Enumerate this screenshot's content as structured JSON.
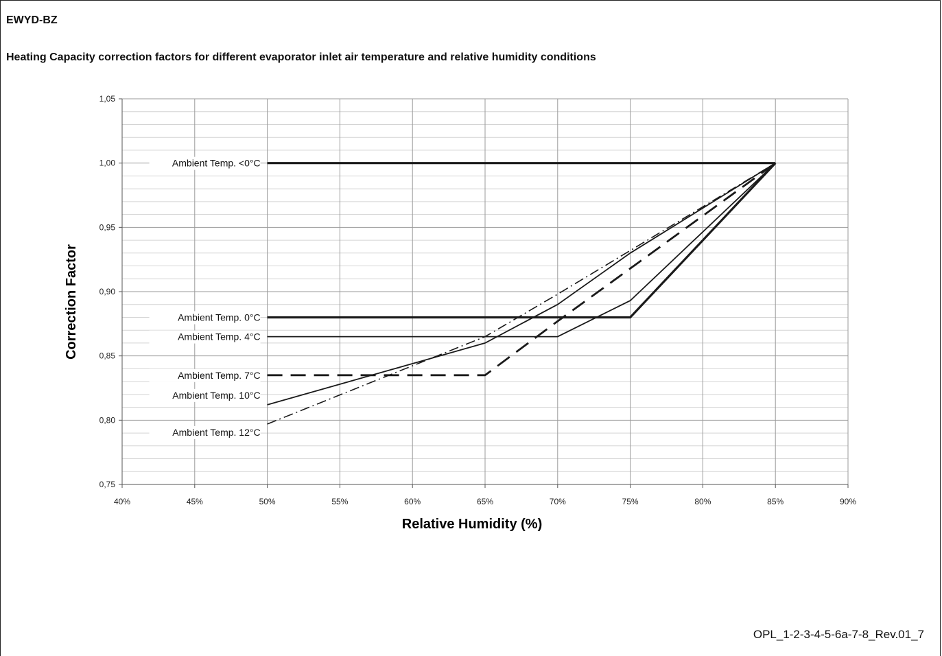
{
  "header": {
    "model": "EWYD-BZ",
    "title": "Heating Capacity correction factors for different evaporator inlet air temperature and relative humidity conditions"
  },
  "footer": {
    "reference": "OPL_1-2-3-4-5-6a-7-8_Rev.01_7"
  },
  "chart_data": {
    "type": "line",
    "title": "Heating Capacity correction factors for different evaporator inlet air temperature and relative humidity conditions",
    "xlabel": "Relative Humidity (%)",
    "ylabel": "Correction Factor",
    "xlim": [
      40,
      90
    ],
    "ylim": [
      0.75,
      1.05
    ],
    "x_ticks": [
      40,
      45,
      50,
      55,
      60,
      65,
      70,
      75,
      80,
      85,
      90
    ],
    "x_tick_labels": [
      "40%",
      "45%",
      "50%",
      "55%",
      "60%",
      "65%",
      "70%",
      "75%",
      "80%",
      "85%",
      "90%"
    ],
    "y_ticks": [
      0.75,
      0.8,
      0.85,
      0.9,
      0.95,
      1.0,
      1.05
    ],
    "y_tick_labels": [
      "0,75",
      "0,80",
      "0,85",
      "0,90",
      "0,95",
      "1,00",
      "1,05"
    ],
    "grid": true,
    "legend": "inline labels at left",
    "series": [
      {
        "name": "Ambient Temp. <0°C",
        "style": "thick-solid",
        "x": [
          50,
          85
        ],
        "y": [
          1.0,
          1.0
        ]
      },
      {
        "name": "Ambient Temp. 0°C",
        "style": "thick-solid",
        "x": [
          50,
          75,
          85
        ],
        "y": [
          0.88,
          0.88,
          1.0
        ]
      },
      {
        "name": "Ambient Temp. 4°C",
        "style": "solid",
        "x": [
          50,
          70,
          75,
          85
        ],
        "y": [
          0.865,
          0.865,
          0.893,
          1.0
        ]
      },
      {
        "name": "Ambient Temp. 7°C",
        "style": "dashed",
        "x": [
          50,
          65,
          70,
          75,
          85
        ],
        "y": [
          0.835,
          0.835,
          0.877,
          0.918,
          1.0
        ]
      },
      {
        "name": "Ambient Temp. 10°C",
        "style": "solid",
        "x": [
          50,
          65,
          70,
          75,
          85
        ],
        "y": [
          0.812,
          0.86,
          0.89,
          0.93,
          1.0
        ]
      },
      {
        "name": "Ambient Temp. 12°C",
        "style": "dashdot",
        "x": [
          50,
          65,
          70,
          75,
          85
        ],
        "y": [
          0.797,
          0.865,
          0.898,
          0.932,
          1.0
        ]
      }
    ]
  }
}
